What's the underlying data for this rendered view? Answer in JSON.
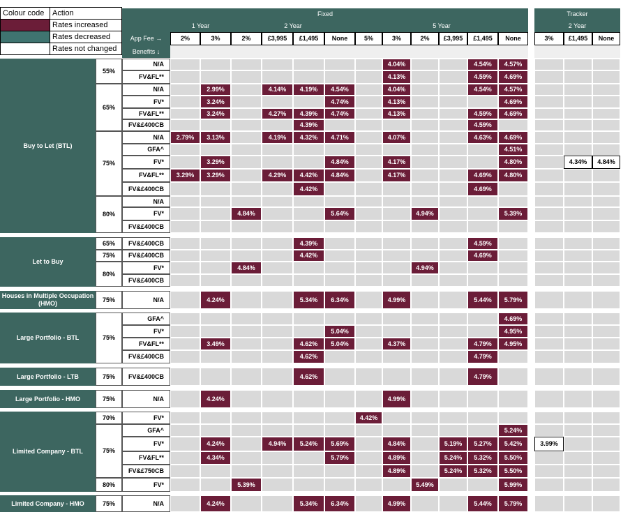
{
  "legend": {
    "colour_code_label": "Colour code",
    "action_label": "Action",
    "items": [
      {
        "label": "Rates increased",
        "color": "#6b1d38"
      },
      {
        "label": "Rates decreased",
        "color": "#3f7470"
      },
      {
        "label": "Rates not changed",
        "color": "#ffffff"
      }
    ]
  },
  "header": {
    "fixed_label": "Fixed",
    "tracker_label": "Tracker",
    "app_fee_label": "App Fee →",
    "benefits_label": "Benefits ↓",
    "fixed_terms": [
      {
        "label": "1 Year",
        "span": 2
      },
      {
        "label": "2 Year",
        "span": 4
      },
      {
        "label": "5 Year",
        "span": 6
      }
    ],
    "fixed_fees": [
      "2%",
      "3%",
      "2%",
      "£3,995",
      "£1,495",
      "None",
      "5%",
      "3%",
      "2%",
      "£3,995",
      "£1,495",
      "None"
    ],
    "tracker_terms": [
      {
        "label": "2 Year",
        "span": 3
      }
    ],
    "tracker_fees": [
      "3%",
      "£1,495",
      "None"
    ]
  },
  "colors": {
    "increased": "#6b1d38",
    "decreased": "#3f7470",
    "header": "#3d6660",
    "grid": "#d9d9d9"
  },
  "groups": [
    {
      "product": "Buy to Let (BTL)",
      "ltvs": [
        {
          "ltv": "55%",
          "rows": [
            {
              "benefit": "N/A",
              "fixed": [
                "",
                "",
                "",
                "",
                "",
                "",
                "",
                "4.04%",
                "",
                "",
                "4.54%",
                "4.57%"
              ],
              "tracker": [
                "",
                "",
                ""
              ]
            },
            {
              "benefit": "FV&FL**",
              "fixed": [
                "",
                "",
                "",
                "",
                "",
                "",
                "",
                "4.13%",
                "",
                "",
                "4.59%",
                "4.69%"
              ],
              "tracker": [
                "",
                "",
                ""
              ]
            }
          ]
        },
        {
          "ltv": "65%",
          "rows": [
            {
              "benefit": "N/A",
              "fixed": [
                "",
                "2.99%",
                "",
                "4.14%",
                "4.19%",
                "4.54%",
                "",
                "4.04%",
                "",
                "",
                "4.54%",
                "4.57%"
              ],
              "tracker": [
                "",
                "",
                ""
              ]
            },
            {
              "benefit": "FV*",
              "fixed": [
                "",
                "3.24%",
                "",
                "",
                "",
                "4.74%",
                "",
                "4.13%",
                "",
                "",
                "",
                "4.69%"
              ],
              "tracker": [
                "",
                "",
                ""
              ]
            },
            {
              "benefit": "FV&FL**",
              "fixed": [
                "",
                "3.24%",
                "",
                "4.27%",
                "4.39%",
                "4.74%",
                "",
                "4.13%",
                "",
                "",
                "4.59%",
                "4.69%"
              ],
              "tracker": [
                "",
                "",
                ""
              ]
            },
            {
              "benefit": "FV&£400CB",
              "fixed": [
                "",
                "",
                "",
                "",
                "4.39%",
                "",
                "",
                "",
                "",
                "",
                "4.59%",
                ""
              ],
              "tracker": [
                "",
                "",
                ""
              ]
            }
          ]
        },
        {
          "ltv": "75%",
          "rows": [
            {
              "benefit": "N/A",
              "fixed": [
                "2.79%",
                "3.13%",
                "",
                "4.19%",
                "4.32%",
                "4.71%",
                "",
                "4.07%",
                "",
                "",
                "4.63%",
                "4.69%"
              ],
              "tracker": [
                "",
                "",
                ""
              ]
            },
            {
              "benefit": "GFA^",
              "fixed": [
                "",
                "",
                "",
                "",
                "",
                "",
                "",
                "",
                "",
                "",
                "",
                "4.51%"
              ],
              "tracker": [
                "",
                "",
                ""
              ]
            },
            {
              "benefit": "FV*",
              "fixed": [
                "",
                "3.29%",
                "",
                "",
                "",
                "4.84%",
                "",
                "4.17%",
                "",
                "",
                "",
                "4.80%"
              ],
              "tracker": [
                "",
                "4.34%",
                "4.84%"
              ]
            },
            {
              "benefit": "FV&FL**",
              "fixed": [
                "3.29%",
                "3.29%",
                "",
                "4.29%",
                "4.42%",
                "4.84%",
                "",
                "4.17%",
                "",
                "",
                "4.69%",
                "4.80%"
              ],
              "tracker": [
                "",
                "",
                ""
              ]
            },
            {
              "benefit": "FV&£400CB",
              "fixed": [
                "",
                "",
                "",
                "",
                "4.42%",
                "",
                "",
                "",
                "",
                "",
                "4.69%",
                ""
              ],
              "tracker": [
                "",
                "",
                ""
              ]
            }
          ]
        },
        {
          "ltv": "80%",
          "rows": [
            {
              "benefit": "N/A",
              "fixed": [
                "",
                "",
                "",
                "",
                "",
                "",
                "",
                "",
                "",
                "",
                "",
                ""
              ],
              "tracker": [
                "",
                "",
                ""
              ]
            },
            {
              "benefit": "FV*",
              "fixed": [
                "",
                "",
                "4.84%",
                "",
                "",
                "5.64%",
                "",
                "",
                "4.94%",
                "",
                "",
                "5.39%"
              ],
              "tracker": [
                "",
                "",
                ""
              ]
            },
            {
              "benefit": "FV&£400CB",
              "fixed": [
                "",
                "",
                "",
                "",
                "",
                "",
                "",
                "",
                "",
                "",
                "",
                ""
              ],
              "tracker": [
                "",
                "",
                ""
              ]
            }
          ]
        }
      ]
    },
    {
      "product": "Let to Buy",
      "ltvs": [
        {
          "ltv": "65%",
          "rows": [
            {
              "benefit": "FV&£400CB",
              "fixed": [
                "",
                "",
                "",
                "",
                "4.39%",
                "",
                "",
                "",
                "",
                "",
                "4.59%",
                ""
              ],
              "tracker": [
                "",
                "",
                ""
              ]
            }
          ]
        },
        {
          "ltv": "75%",
          "rows": [
            {
              "benefit": "FV&£400CB",
              "fixed": [
                "",
                "",
                "",
                "",
                "4.42%",
                "",
                "",
                "",
                "",
                "",
                "4.69%",
                ""
              ],
              "tracker": [
                "",
                "",
                ""
              ]
            }
          ]
        },
        {
          "ltv": "80%",
          "rows": [
            {
              "benefit": "FV*",
              "fixed": [
                "",
                "",
                "4.84%",
                "",
                "",
                "",
                "",
                "",
                "4.94%",
                "",
                "",
                ""
              ],
              "tracker": [
                "",
                "",
                ""
              ]
            },
            {
              "benefit": "FV&£400CB",
              "fixed": [
                "",
                "",
                "",
                "",
                "",
                "",
                "",
                "",
                "",
                "",
                "",
                ""
              ],
              "tracker": [
                "",
                "",
                ""
              ]
            }
          ]
        }
      ]
    },
    {
      "product": "Houses in Multiple Occupation (HMO)",
      "ltvs": [
        {
          "ltv": "75%",
          "rows": [
            {
              "benefit": "N/A",
              "fixed": [
                "",
                "4.24%",
                "",
                "",
                "5.34%",
                "6.34%",
                "",
                "4.99%",
                "",
                "",
                "5.44%",
                "5.79%"
              ],
              "tracker": [
                "",
                "",
                ""
              ]
            }
          ]
        }
      ]
    },
    {
      "product": "Large Portfolio - BTL",
      "ltvs": [
        {
          "ltv": "75%",
          "rows": [
            {
              "benefit": "GFA^",
              "fixed": [
                "",
                "",
                "",
                "",
                "",
                "",
                "",
                "",
                "",
                "",
                "",
                "4.69%"
              ],
              "tracker": [
                "",
                "",
                ""
              ]
            },
            {
              "benefit": "FV*",
              "fixed": [
                "",
                "",
                "",
                "",
                "",
                "5.04%",
                "",
                "",
                "",
                "",
                "",
                "4.95%"
              ],
              "tracker": [
                "",
                "",
                ""
              ]
            },
            {
              "benefit": "FV&FL**",
              "fixed": [
                "",
                "3.49%",
                "",
                "",
                "4.62%",
                "5.04%",
                "",
                "4.37%",
                "",
                "",
                "4.79%",
                "4.95%"
              ],
              "tracker": [
                "",
                "",
                ""
              ]
            },
            {
              "benefit": "FV&£400CB",
              "fixed": [
                "",
                "",
                "",
                "",
                "4.62%",
                "",
                "",
                "",
                "",
                "",
                "4.79%",
                ""
              ],
              "tracker": [
                "",
                "",
                ""
              ]
            }
          ]
        }
      ]
    },
    {
      "product": "Large Portfolio - LTB",
      "ltvs": [
        {
          "ltv": "75%",
          "rows": [
            {
              "benefit": "FV&£400CB",
              "fixed": [
                "",
                "",
                "",
                "",
                "4.62%",
                "",
                "",
                "",
                "",
                "",
                "4.79%",
                ""
              ],
              "tracker": [
                "",
                "",
                ""
              ]
            }
          ]
        }
      ]
    },
    {
      "product": "Large Portfolio - HMO",
      "ltvs": [
        {
          "ltv": "75%",
          "rows": [
            {
              "benefit": "N/A",
              "fixed": [
                "",
                "4.24%",
                "",
                "",
                "",
                "",
                "",
                "4.99%",
                "",
                "",
                "",
                ""
              ],
              "tracker": [
                "",
                "",
                ""
              ]
            }
          ]
        }
      ]
    },
    {
      "product": "Limited Company - BTL",
      "ltvs": [
        {
          "ltv": "70%",
          "rows": [
            {
              "benefit": "FV*",
              "fixed": [
                "",
                "",
                "",
                "",
                "",
                "",
                "4.42%",
                "",
                "",
                "",
                "",
                ""
              ],
              "tracker": [
                "",
                "",
                ""
              ]
            }
          ]
        },
        {
          "ltv": "75%",
          "rows": [
            {
              "benefit": "GFA^",
              "fixed": [
                "",
                "",
                "",
                "",
                "",
                "",
                "",
                "",
                "",
                "",
                "",
                "5.24%"
              ],
              "tracker": [
                "",
                "",
                ""
              ]
            },
            {
              "benefit": "FV*",
              "fixed": [
                "",
                "4.24%",
                "",
                "4.94%",
                "5.24%",
                "5.69%",
                "",
                "4.84%",
                "",
                "5.19%",
                "5.27%",
                "5.42%"
              ],
              "tracker": [
                "3.99%",
                "",
                ""
              ]
            },
            {
              "benefit": "FV&FL**",
              "fixed": [
                "",
                "4.34%",
                "",
                "",
                "",
                "5.79%",
                "",
                "4.89%",
                "",
                "5.24%",
                "5.32%",
                "5.50%"
              ],
              "tracker": [
                "",
                "",
                ""
              ]
            },
            {
              "benefit": "FV&£750CB",
              "fixed": [
                "",
                "",
                "",
                "",
                "",
                "",
                "",
                "4.89%",
                "",
                "5.24%",
                "5.32%",
                "5.50%"
              ],
              "tracker": [
                "",
                "",
                ""
              ]
            }
          ]
        },
        {
          "ltv": "80%",
          "rows": [
            {
              "benefit": "FV*",
              "fixed": [
                "",
                "",
                "5.39%",
                "",
                "",
                "",
                "",
                "",
                "5.49%",
                "",
                "",
                "5.99%"
              ],
              "tracker": [
                "",
                "",
                ""
              ]
            }
          ]
        }
      ]
    },
    {
      "product": "Limited Company - HMO",
      "ltvs": [
        {
          "ltv": "75%",
          "rows": [
            {
              "benefit": "N/A",
              "fixed": [
                "",
                "4.24%",
                "",
                "",
                "5.34%",
                "6.34%",
                "",
                "4.99%",
                "",
                "",
                "5.44%",
                "5.79%"
              ],
              "tracker": [
                "",
                "",
                ""
              ]
            }
          ]
        }
      ]
    }
  ]
}
